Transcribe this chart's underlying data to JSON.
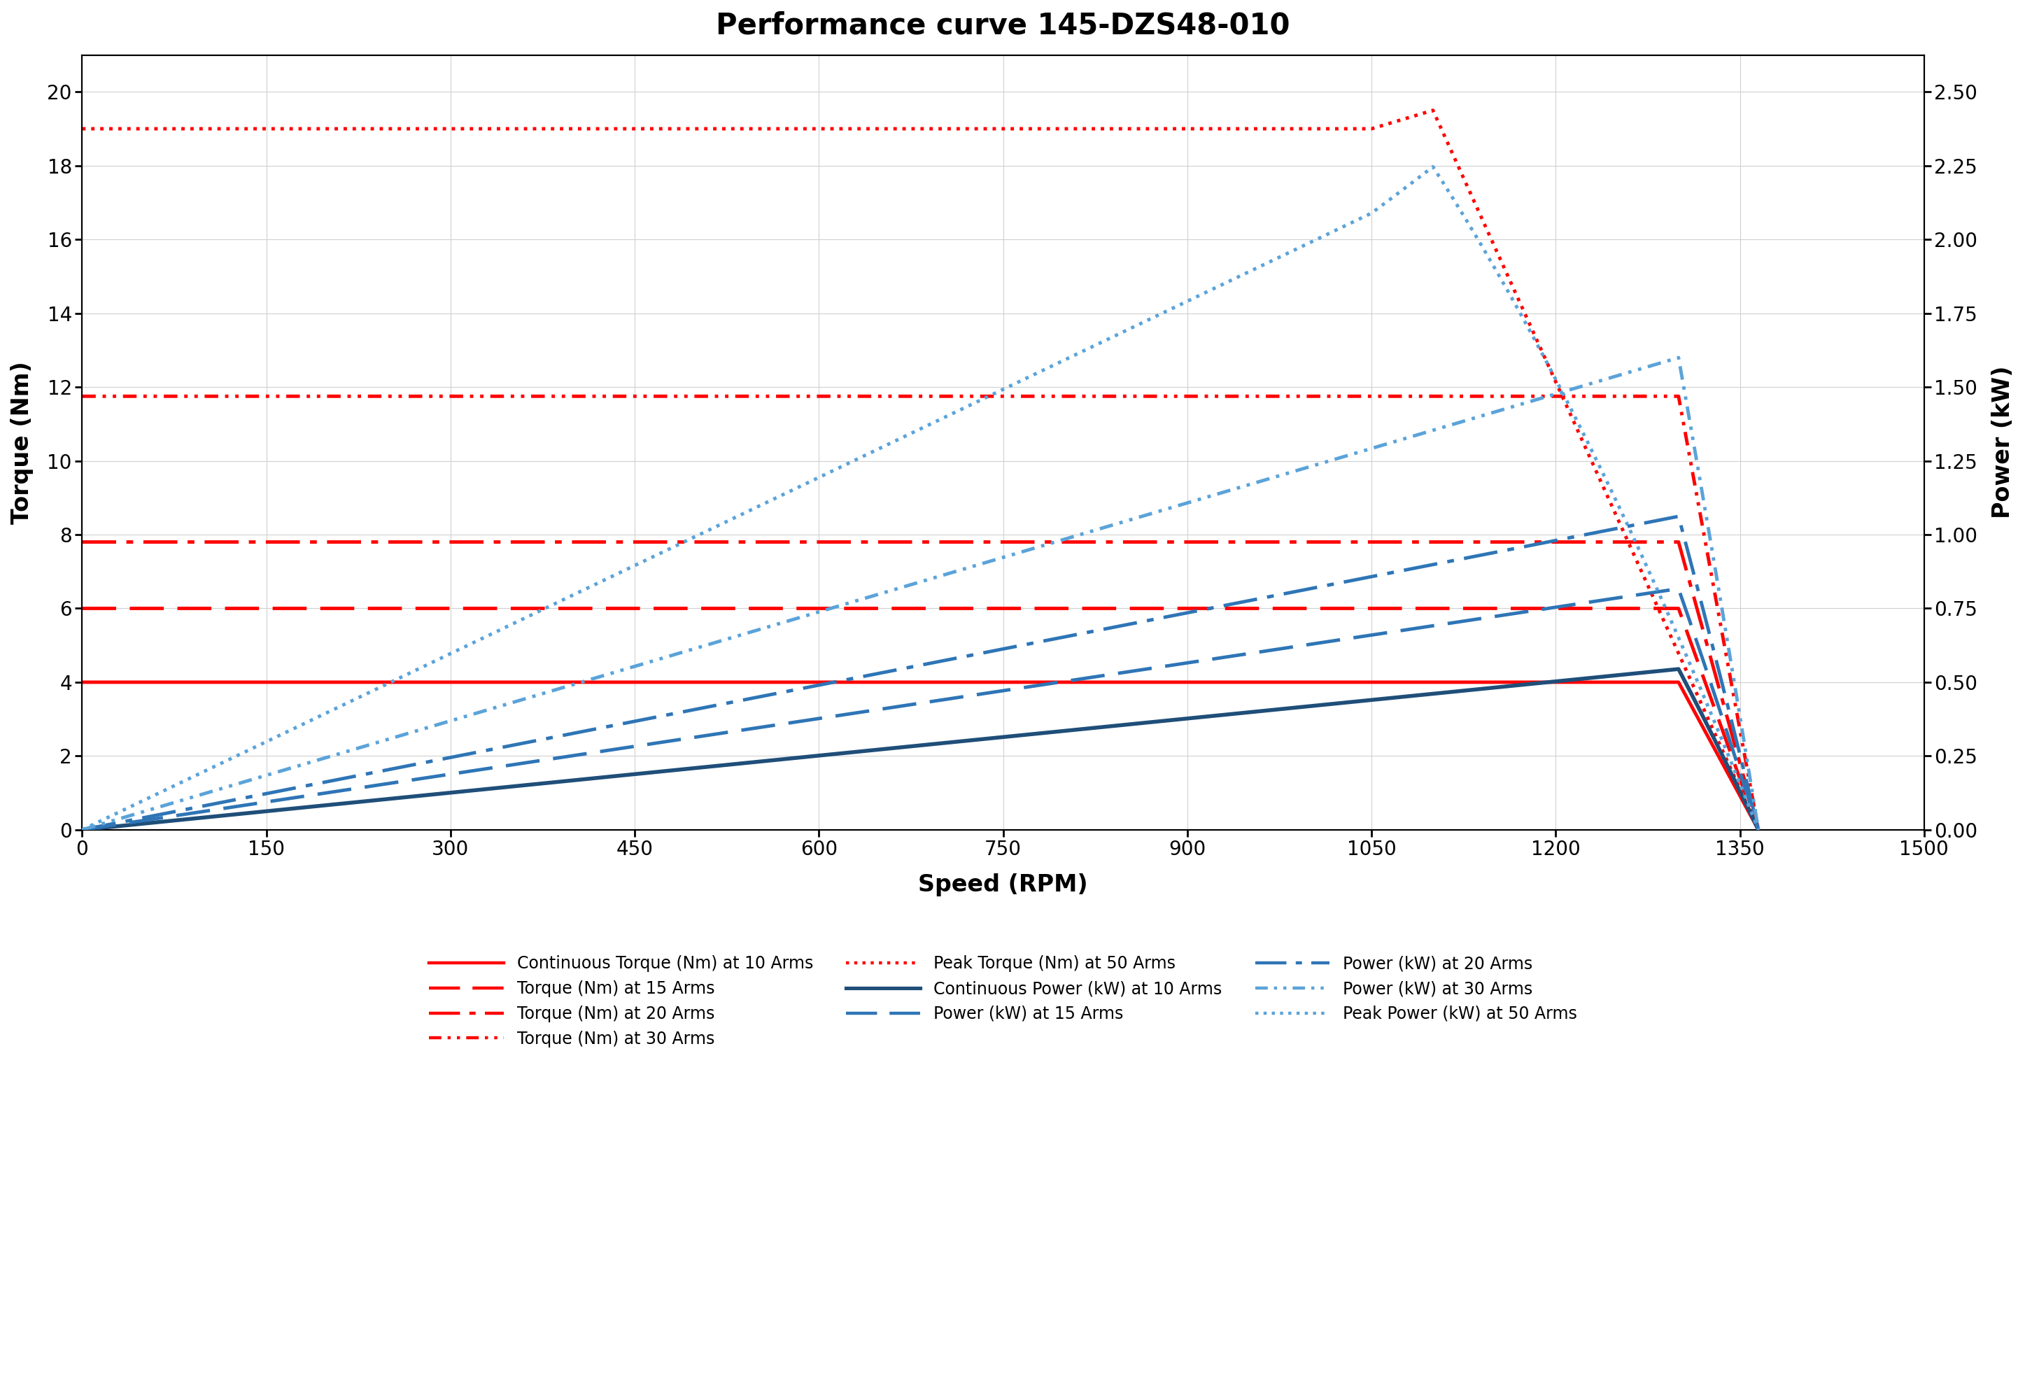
{
  "title": "Performance curve 145-DZS48-010",
  "xlabel": "Speed (RPM)",
  "ylabel_left": "Torque (Nm)",
  "ylabel_right": "Power (kW)",
  "xlim": [
    0,
    1500
  ],
  "ylim_left": [
    0,
    21
  ],
  "ylim_right": [
    0,
    2.625
  ],
  "xticks": [
    0,
    150,
    300,
    450,
    600,
    750,
    900,
    1050,
    1200,
    1350,
    1500
  ],
  "yticks_left": [
    0,
    2,
    4,
    6,
    8,
    10,
    12,
    14,
    16,
    18,
    20
  ],
  "yticks_right": [
    0,
    0.25,
    0.5,
    0.75,
    1.0,
    1.25,
    1.5,
    1.75,
    2.0,
    2.25,
    2.5
  ],
  "red_color": "#FF0000",
  "blue_dark": "#1F4E79",
  "blue_mid": "#2E75B6",
  "blue_light": "#5BA3D9",
  "title_fontsize": 30,
  "label_fontsize": 24,
  "tick_fontsize": 20,
  "legend_fontsize": 17,
  "torque_cont10": 4.0,
  "torque_15": 6.0,
  "torque_20": 7.8,
  "torque_30": 11.75,
  "torque_peak50_flat": 19.0,
  "torque_peak50_peak": 19.5,
  "base_rpm_std": 1300,
  "peak_rpm_50": 1100,
  "drop_rpm": 1365,
  "flat_start_50": 1050
}
